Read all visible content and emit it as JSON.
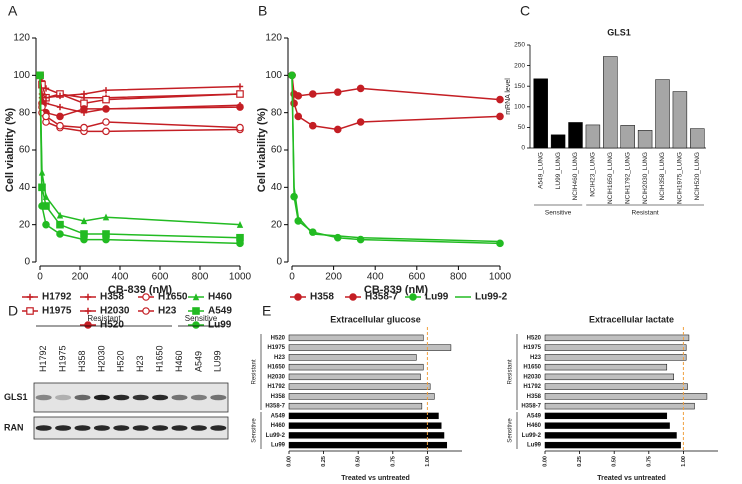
{
  "panel_labels": [
    "A",
    "B",
    "C",
    "D",
    "E"
  ],
  "blot": {
    "group_labels": [
      "Resistant",
      "Sensitive"
    ],
    "lanes": [
      "H1792",
      "H1975",
      "H358",
      "H2030",
      "H520",
      "H23",
      "H1650",
      "H460",
      "A549",
      "LU99"
    ],
    "rows": [
      "GLS1",
      "RAN"
    ]
  },
  "chart_data": [
    {
      "type": "line",
      "x_label": "CB-839 (nM)",
      "y_label": "Cell viability (%)",
      "x": [
        0,
        10,
        30,
        100,
        220,
        330,
        1000
      ],
      "xlim": [
        0,
        1000
      ],
      "xticks": [
        0,
        200,
        400,
        600,
        800,
        1000
      ],
      "ylim": [
        0,
        120
      ],
      "yticks": [
        0,
        20,
        40,
        60,
        80,
        100,
        120
      ],
      "series": [
        {
          "name": "H1792",
          "color": "#c41e24",
          "marker": "plus",
          "values": [
            100,
            97,
            93,
            90,
            88,
            88,
            90
          ]
        },
        {
          "name": "H1975",
          "color": "#c41e24",
          "marker": "square-open",
          "values": [
            100,
            95,
            88,
            90,
            85,
            87,
            90
          ]
        },
        {
          "name": "H358",
          "color": "#c41e24",
          "marker": "plus",
          "values": [
            100,
            90,
            88,
            89,
            90,
            92,
            94
          ]
        },
        {
          "name": "H2030",
          "color": "#c41e24",
          "marker": "plus",
          "values": [
            100,
            88,
            85,
            83,
            80,
            82,
            84
          ]
        },
        {
          "name": "H520",
          "color": "#c41e24",
          "marker": "circle",
          "values": [
            100,
            85,
            80,
            78,
            82,
            82,
            83
          ]
        },
        {
          "name": "H1650",
          "color": "#c41e24",
          "marker": "circle-open",
          "values": [
            100,
            80,
            75,
            72,
            70,
            70,
            71
          ]
        },
        {
          "name": "H23",
          "color": "#c41e24",
          "marker": "circle-open",
          "values": [
            100,
            83,
            78,
            73,
            72,
            75,
            72
          ]
        },
        {
          "name": "H460",
          "color": "#22bb22",
          "marker": "triangle",
          "values": [
            100,
            48,
            35,
            25,
            22,
            24,
            20
          ]
        },
        {
          "name": "A549",
          "color": "#22bb22",
          "marker": "square",
          "values": [
            100,
            40,
            30,
            20,
            15,
            15,
            13
          ]
        },
        {
          "name": "Lu99",
          "color": "#22bb22",
          "marker": "circle",
          "values": [
            100,
            30,
            20,
            15,
            12,
            12,
            10
          ]
        }
      ]
    },
    {
      "type": "line",
      "x_label": "CB-839 (nM)",
      "y_label": "Cell viability (%)",
      "x": [
        0,
        10,
        30,
        100,
        220,
        330,
        1000
      ],
      "xlim": [
        0,
        1000
      ],
      "xticks": [
        0,
        200,
        400,
        600,
        800,
        1000
      ],
      "ylim": [
        0,
        120
      ],
      "yticks": [
        0,
        20,
        40,
        60,
        80,
        100,
        120
      ],
      "series": [
        {
          "name": "H358",
          "color": "#c41e24",
          "marker": "circle",
          "values": [
            100,
            90,
            89,
            90,
            91,
            93,
            87
          ]
        },
        {
          "name": "H358-7",
          "color": "#c41e24",
          "marker": "circle",
          "values": [
            100,
            85,
            78,
            73,
            71,
            75,
            78
          ]
        },
        {
          "name": "Lu99",
          "color": "#22bb22",
          "marker": "circle",
          "values": [
            100,
            35,
            22,
            16,
            13,
            12,
            10
          ]
        },
        {
          "name": "Lu99-2",
          "color": "#22bb22",
          "marker": "none",
          "values": [
            100,
            40,
            24,
            15,
            14,
            13,
            11
          ]
        }
      ]
    },
    {
      "type": "bar",
      "title": "GLS1",
      "y_label": "mRNA level",
      "categories": [
        "A549_LUNG",
        "LU99_LUNG",
        "NCIH460_LUNG",
        "NCIH23_LUNG",
        "NCIH1650_LUNG",
        "NCIH1792_LUNG",
        "NCIH2030_LUNG",
        "NCIH358_LUNG",
        "NCIH1975_LUNG",
        "NCIH520_LUNG"
      ],
      "values": [
        168,
        32,
        62,
        56,
        222,
        55,
        43,
        166,
        137,
        47
      ],
      "colors": [
        "#000000",
        "#000000",
        "#000000",
        "#a6a6a6",
        "#a6a6a6",
        "#a6a6a6",
        "#a6a6a6",
        "#a6a6a6",
        "#a6a6a6",
        "#a6a6a6"
      ],
      "group_labels": [
        "Sensitive",
        "Resistant"
      ],
      "ylim": [
        0,
        250
      ],
      "yticks": [
        0,
        50,
        100,
        150,
        200,
        250
      ]
    },
    {
      "type": "hbar",
      "title": "Extracellular glucose",
      "x_label": "Treated vs untreated",
      "categories": [
        "H520",
        "H1975",
        "H23",
        "H1650",
        "H2030",
        "H1792",
        "H358",
        "H358-7",
        "A549",
        "H460",
        "Lu99-2",
        "Lu99"
      ],
      "values": [
        0.97,
        1.17,
        0.92,
        0.97,
        0.95,
        1.02,
        1.05,
        0.96,
        1.08,
        1.1,
        1.12,
        1.14
      ],
      "colors": [
        "#bfbfbf",
        "#bfbfbf",
        "#bfbfbf",
        "#bfbfbf",
        "#bfbfbf",
        "#bfbfbf",
        "#bfbfbf",
        "#bfbfbf",
        "#000000",
        "#000000",
        "#000000",
        "#000000"
      ],
      "group_labels": [
        "Resistant",
        "Sensitive"
      ],
      "reference_line": 1,
      "reference_color": "#f0a040",
      "xlim": [
        0,
        1.25
      ],
      "xticks": [
        {
          "value": 0,
          "label": "0.00"
        },
        {
          "value": 0.25,
          "label": "0.25"
        },
        {
          "value": 0.5,
          "label": "0.50"
        },
        {
          "value": 0.75,
          "label": "0.75"
        },
        {
          "value": 1,
          "label": "1.00"
        }
      ]
    },
    {
      "type": "hbar",
      "title": "Extracellular lactate",
      "x_label": "Treated vs untreated",
      "categories": [
        "H520",
        "H1975",
        "H23",
        "H1650",
        "H2030",
        "H1792",
        "H358",
        "H358-7",
        "A549",
        "H460",
        "Lu99-2",
        "Lu99"
      ],
      "values": [
        1.04,
        1.02,
        1.02,
        0.88,
        0.93,
        1.03,
        1.17,
        1.08,
        0.88,
        0.9,
        0.95,
        0.98
      ],
      "colors": [
        "#bfbfbf",
        "#bfbfbf",
        "#bfbfbf",
        "#bfbfbf",
        "#bfbfbf",
        "#bfbfbf",
        "#bfbfbf",
        "#bfbfbf",
        "#000000",
        "#000000",
        "#000000",
        "#000000"
      ],
      "group_labels": [
        "Resistant",
        "Sensitive"
      ],
      "reference_line": 1,
      "reference_color": "#f0a040",
      "xlim": [
        0,
        1.25
      ],
      "xticks": [
        {
          "value": 0,
          "label": "0.00"
        },
        {
          "value": 0.25,
          "label": "0.25"
        },
        {
          "value": 0.5,
          "label": "0.50"
        },
        {
          "value": 0.75,
          "label": "0.75"
        },
        {
          "value": 1,
          "label": "1.00"
        }
      ]
    }
  ]
}
